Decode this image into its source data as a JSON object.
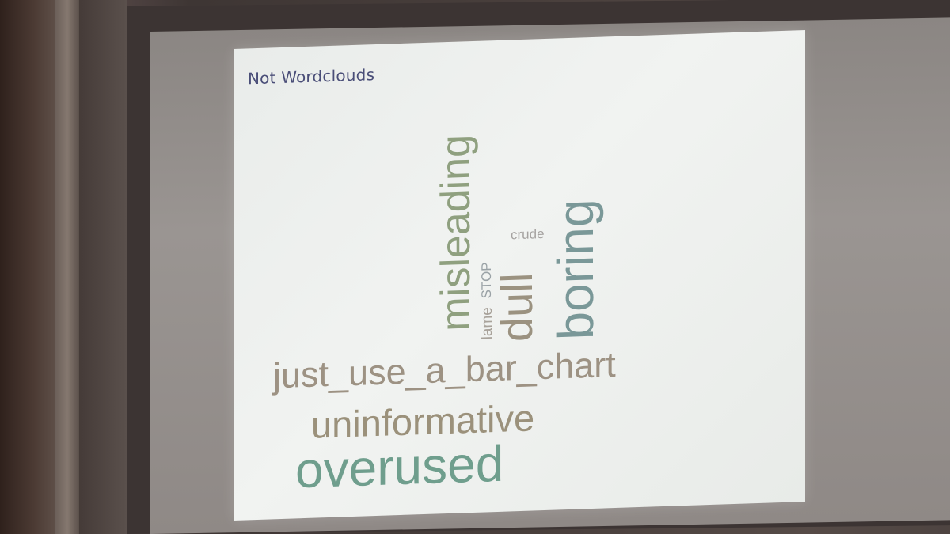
{
  "slide": {
    "title": "Not Wordclouds"
  },
  "wordcloud": {
    "words": [
      {
        "text": "overused",
        "color": "#6f9e8d"
      },
      {
        "text": "uninformative",
        "color": "#9b917b"
      },
      {
        "text": "just_use_a_bar_chart",
        "color": "#9d9283"
      },
      {
        "text": "misleading",
        "color": "#8fa07f"
      },
      {
        "text": "boring",
        "color": "#7a9898"
      },
      {
        "text": "dull",
        "color": "#9b9280"
      },
      {
        "text": "lame",
        "color": "#a8a29a"
      },
      {
        "text": "STOP",
        "color": "#9aa2a6"
      },
      {
        "text": "crude",
        "color": "#a5a2a0"
      }
    ]
  }
}
